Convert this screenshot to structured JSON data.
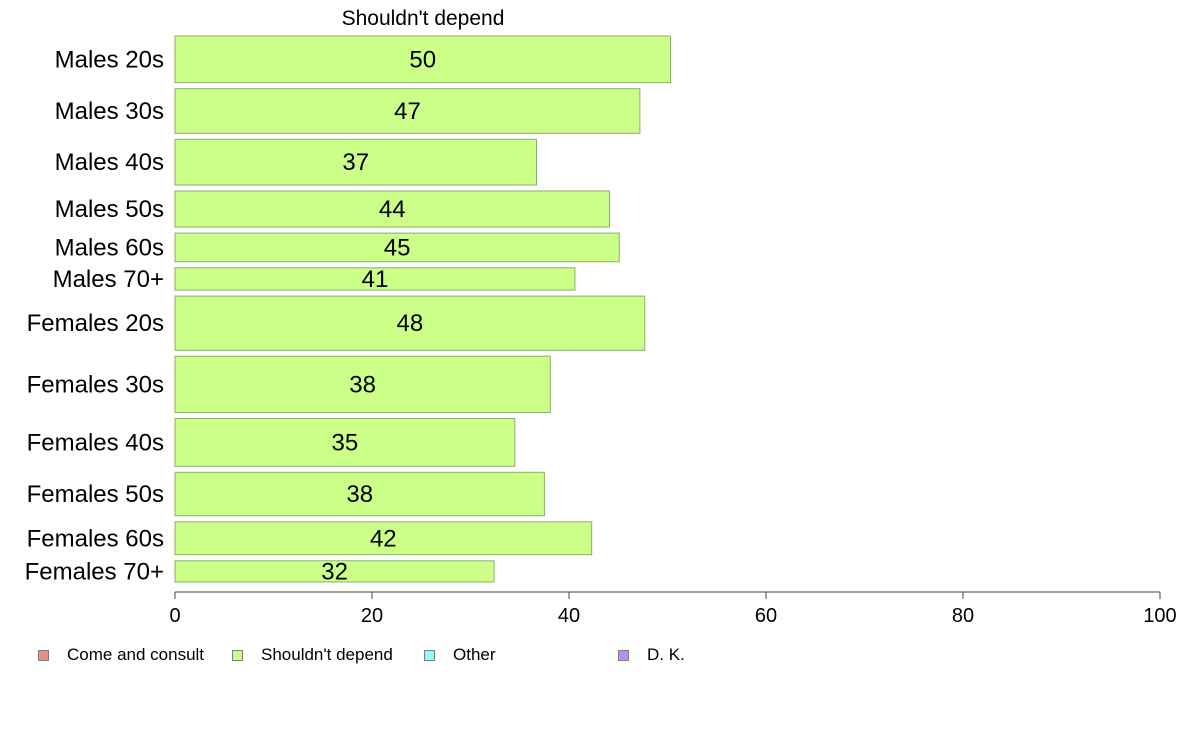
{
  "chart_data": {
    "type": "bar",
    "orientation": "horizontal",
    "title": "Shouldn't depend",
    "categories": [
      "Males 20s",
      "Males 30s",
      "Males 40s",
      "Males 50s",
      "Males 60s",
      "Males 70+",
      "Females 20s",
      "Females 30s",
      "Females 40s",
      "Females 50s",
      "Females 60s",
      "Females 70+"
    ],
    "values": [
      50.3,
      47.2,
      36.7,
      44.1,
      45.1,
      40.6,
      47.7,
      38.1,
      34.5,
      37.5,
      42.3,
      32.4
    ],
    "value_labels": [
      "50",
      "47",
      "37",
      "44",
      "45",
      "41",
      "48",
      "38",
      "35",
      "38",
      "42",
      "32"
    ],
    "bar_weights": [
      44,
      42,
      43,
      34,
      27,
      21,
      51,
      53,
      45,
      41,
      31,
      20
    ],
    "xlim": [
      0,
      100
    ],
    "xticks": [
      0,
      20,
      40,
      60,
      80,
      100
    ],
    "xtick_labels": [
      "0",
      "20",
      "40",
      "60",
      "80",
      "100"
    ],
    "grid": false,
    "bar_color": "#ccff88",
    "bar_edge_color": "#8aaf6a",
    "legend": {
      "position": "bottom-left",
      "items": [
        {
          "label": "Come and consult",
          "color": "#f08a8a"
        },
        {
          "label": "Shouldn't depend",
          "color": "#ccff88"
        },
        {
          "label": "Other",
          "color": "#88ffff"
        },
        {
          "label": "D. K.",
          "color": "#bb88ff"
        }
      ]
    }
  }
}
